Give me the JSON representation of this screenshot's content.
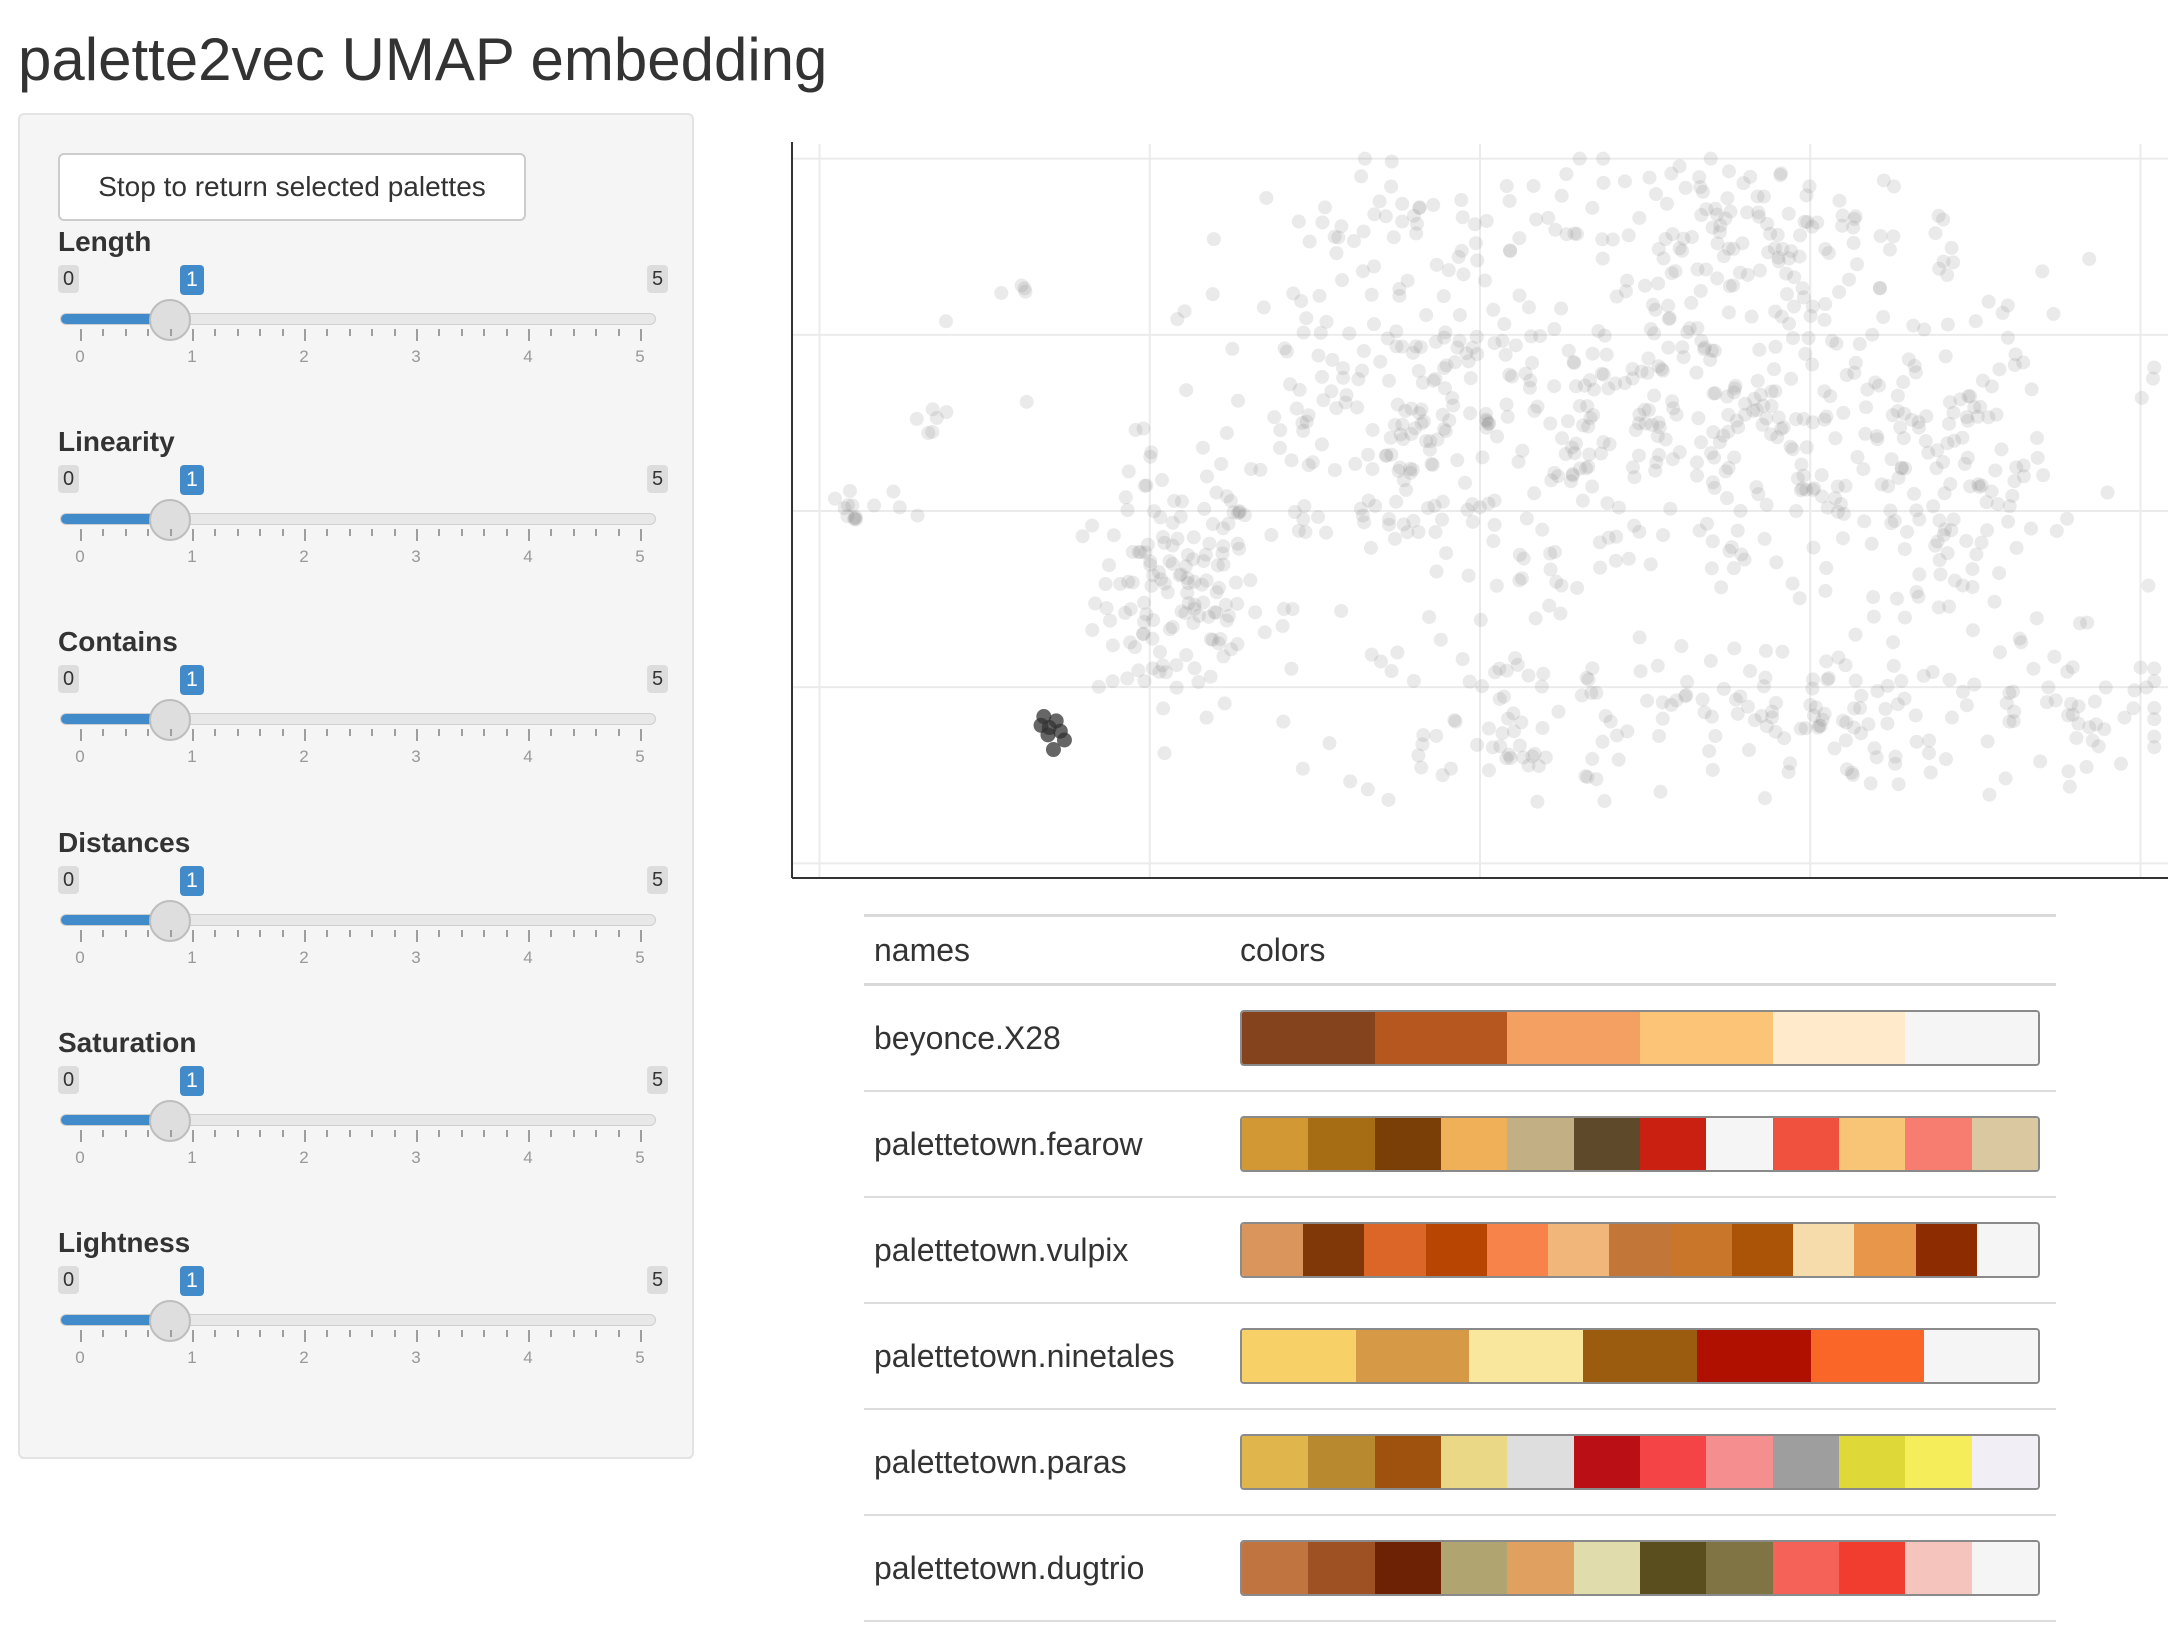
{
  "page_title": "palette2vec UMAP embedding",
  "sidebar": {
    "stop_button": "Stop to return selected palettes",
    "sliders": [
      {
        "label": "Length",
        "min": "0",
        "max": "5",
        "value": "1",
        "grid": [
          "0",
          "1",
          "2",
          "3",
          "4",
          "5"
        ]
      },
      {
        "label": "Linearity",
        "min": "0",
        "max": "5",
        "value": "1",
        "grid": [
          "0",
          "1",
          "2",
          "3",
          "4",
          "5"
        ]
      },
      {
        "label": "Contains",
        "min": "0",
        "max": "5",
        "value": "1",
        "grid": [
          "0",
          "1",
          "2",
          "3",
          "4",
          "5"
        ]
      },
      {
        "label": "Distances",
        "min": "0",
        "max": "5",
        "value": "1",
        "grid": [
          "0",
          "1",
          "2",
          "3",
          "4",
          "5"
        ]
      },
      {
        "label": "Saturation",
        "min": "0",
        "max": "5",
        "value": "1",
        "grid": [
          "0",
          "1",
          "2",
          "3",
          "4",
          "5"
        ]
      },
      {
        "label": "Lightness",
        "min": "0",
        "max": "5",
        "value": "1",
        "grid": [
          "0",
          "1",
          "2",
          "3",
          "4",
          "5"
        ]
      }
    ]
  },
  "chart_data": {
    "type": "scatter",
    "title": "",
    "xlabel": "",
    "ylabel": "",
    "x_tick_labels": [],
    "y_tick_labels": [],
    "grid": true,
    "xlim": [
      0,
      100
    ],
    "ylim": [
      0,
      100
    ],
    "point_color": "#7f7f7f",
    "selected_color": "#333333",
    "clusters": [
      {
        "cx": 28,
        "cy": 38,
        "sx": 3,
        "sy": 8,
        "n": 130
      },
      {
        "cx": 46,
        "cy": 62,
        "sx": 10,
        "sy": 12,
        "n": 260
      },
      {
        "cx": 70,
        "cy": 60,
        "sx": 12,
        "sy": 12,
        "n": 300
      },
      {
        "cx": 52,
        "cy": 22,
        "sx": 6,
        "sy": 6,
        "n": 80
      },
      {
        "cx": 73,
        "cy": 22,
        "sx": 5,
        "sy": 5,
        "n": 80
      },
      {
        "cx": 85,
        "cy": 48,
        "sx": 4,
        "sy": 14,
        "n": 90
      },
      {
        "cx": 92,
        "cy": 22,
        "sx": 6,
        "sy": 4,
        "n": 50
      },
      {
        "cx": 70,
        "cy": 88,
        "sx": 8,
        "sy": 5,
        "n": 120
      },
      {
        "cx": 45,
        "cy": 88,
        "sx": 6,
        "sy": 4,
        "n": 40
      },
      {
        "cx": 5,
        "cy": 50,
        "sx": 1.5,
        "sy": 2,
        "n": 14
      },
      {
        "cx": 10,
        "cy": 63,
        "sx": 1,
        "sy": 1,
        "n": 6
      },
      {
        "cx": 16,
        "cy": 80,
        "sx": 0.6,
        "sy": 0.5,
        "n": 4
      }
    ],
    "selected": [
      {
        "x": 18.3,
        "y": 22.0
      },
      {
        "x": 18.7,
        "y": 20.5
      },
      {
        "x": 19.2,
        "y": 21.4
      },
      {
        "x": 19.5,
        "y": 20.0
      },
      {
        "x": 18.6,
        "y": 19.5
      },
      {
        "x": 19.8,
        "y": 18.8
      },
      {
        "x": 19.0,
        "y": 17.5
      },
      {
        "x": 18.1,
        "y": 20.8
      }
    ]
  },
  "table": {
    "headers": [
      "names",
      "colors"
    ],
    "rows": [
      {
        "name": "beyonce.X28",
        "colors": [
          "#85431d",
          "#b5571f",
          "#f3a062",
          "#fcc477",
          "#ffebcc",
          "#f5f5f5"
        ]
      },
      {
        "name": "palettetown.fearow",
        "colors": [
          "#d19834",
          "#a66d14",
          "#7a3e07",
          "#f0b058",
          "#c2af84",
          "#5e4a2a",
          "#c92012",
          "#f5f5f5",
          "#f0503e",
          "#f7c575",
          "#f77d71",
          "#d9c8a0"
        ]
      },
      {
        "name": "palettetown.vulpix",
        "colors": [
          "#d9955b",
          "#803808",
          "#db6628",
          "#b84502",
          "#f7834a",
          "#f0b67a",
          "#c27738",
          "#c9752a",
          "#ab5408",
          "#f7dcab",
          "#e8964a",
          "#8c2c00",
          "#f5f5f5"
        ]
      },
      {
        "name": "palettetown.ninetales",
        "colors": [
          "#f7d068",
          "#d69945",
          "#fae79e",
          "#9c5c0f",
          "#b01000",
          "#fa6528",
          "#f5f5f5"
        ]
      },
      {
        "name": "palettetown.paras",
        "colors": [
          "#e0b64c",
          "#b8892f",
          "#9e520e",
          "#ebd886",
          "#dedede",
          "#ba1015",
          "#f54446",
          "#f58e8e",
          "#9e9e9e",
          "#ded838",
          "#f5ee5a",
          "#f2eef5"
        ]
      },
      {
        "name": "palettetown.dugtrio",
        "colors": [
          "#c07540",
          "#9e5122",
          "#6e2205",
          "#b0a570",
          "#e0a060",
          "#e0dcac",
          "#5a4d1e",
          "#807445",
          "#f56258",
          "#f03d30",
          "#f5c4bc",
          "#f5f5f5"
        ]
      }
    ]
  }
}
